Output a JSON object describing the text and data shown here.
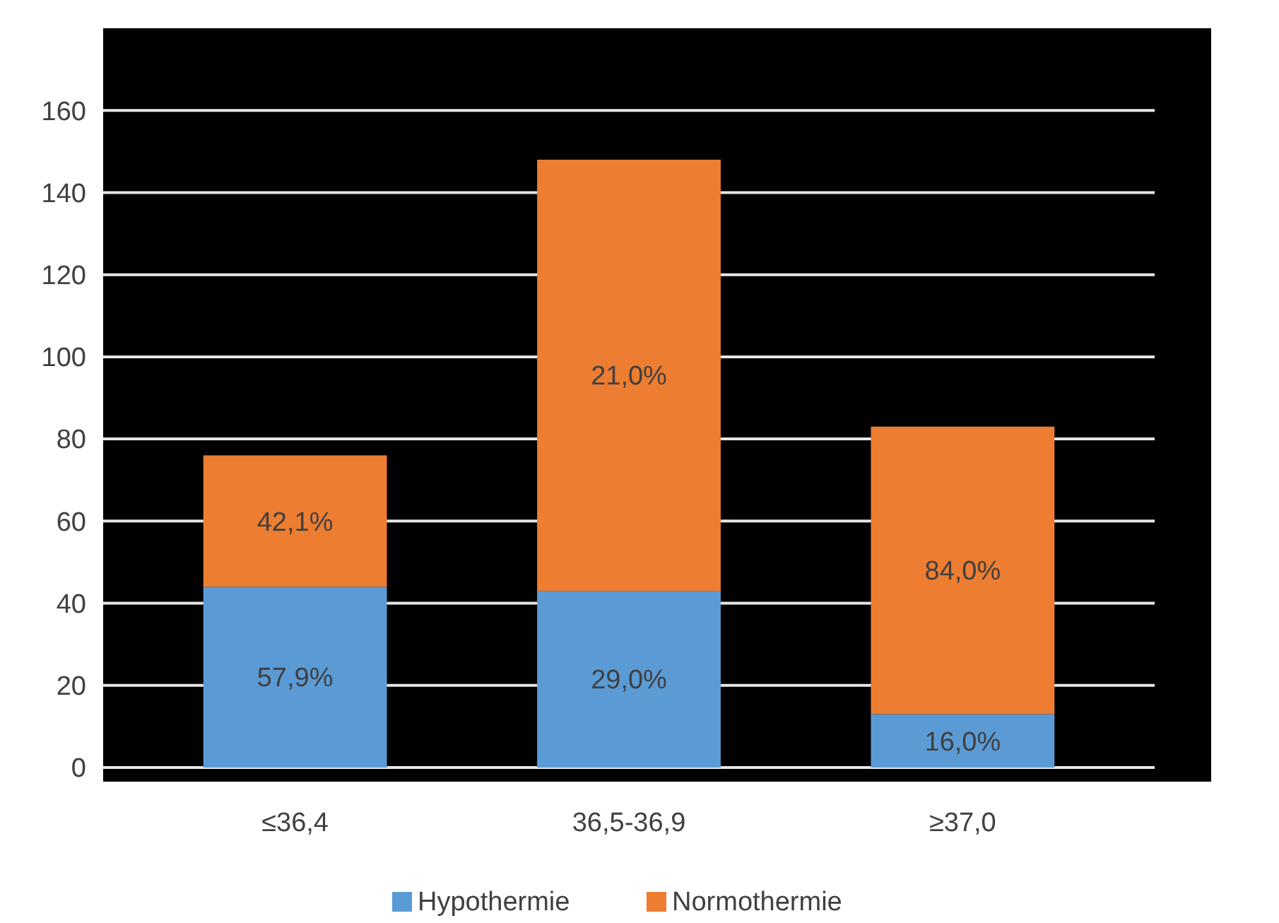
{
  "chart_data": {
    "type": "bar",
    "stacked": true,
    "categories": [
      "≤36,4",
      "36,5-36,9",
      "≥37,0"
    ],
    "series": [
      {
        "name": "Hypothermie",
        "color": "#5b9bd5",
        "values": [
          44,
          43,
          13
        ]
      },
      {
        "name": "Normothermie",
        "color": "#ed7d31",
        "values": [
          32,
          105,
          70
        ]
      }
    ],
    "annotations": [
      "57,9%",
      "29,0%",
      "16,0%",
      "42,1%",
      "21,0%",
      "84,0%"
    ],
    "ylim": [
      0,
      180
    ],
    "yticks": [
      0,
      20,
      40,
      60,
      80,
      100,
      120,
      140,
      160
    ],
    "grid": "y",
    "legend": "bottom"
  }
}
